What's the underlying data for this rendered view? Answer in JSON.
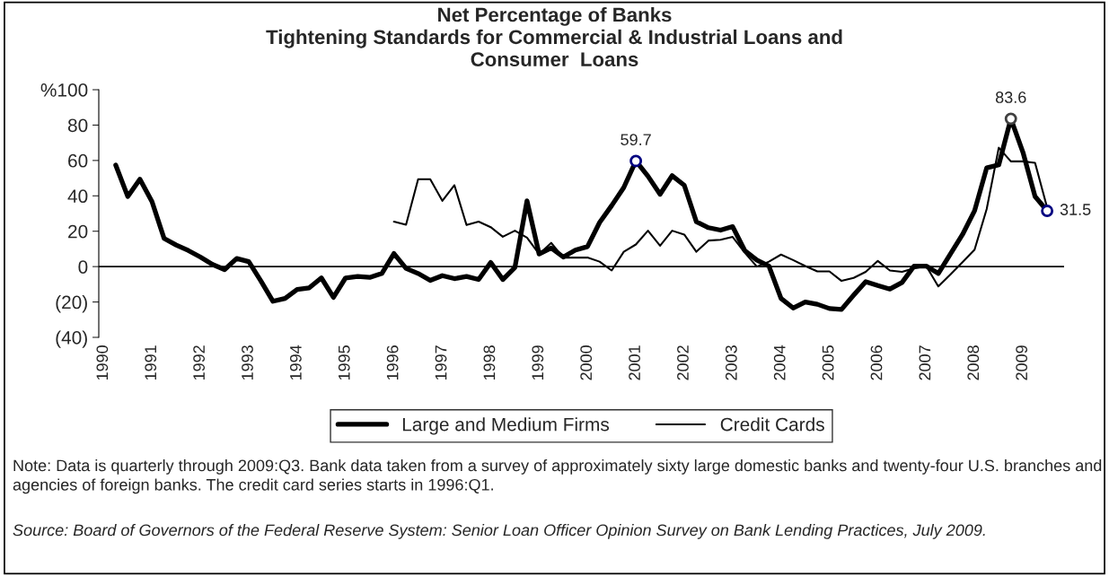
{
  "chart_data": {
    "type": "line",
    "title": "Net Percentage of Banks\nTightening Standards for Commercial & Industrial Loans and\nConsumer  Loans",
    "series": [
      {
        "name": "Large and Medium Firms",
        "color": "#000000",
        "x": [
          1990.25,
          1990.5,
          1990.75,
          1991,
          1991.25,
          1991.5,
          1991.75,
          1992,
          1992.25,
          1992.5,
          1992.75,
          1993,
          1993.25,
          1993.5,
          1993.75,
          1994,
          1994.25,
          1994.5,
          1994.75,
          1995,
          1995.25,
          1995.5,
          1995.75,
          1996,
          1996.25,
          1996.5,
          1996.75,
          1997,
          1997.25,
          1997.5,
          1997.75,
          1998,
          1998.25,
          1998.5,
          1998.75,
          1999,
          1999.25,
          1999.5,
          1999.75,
          2000,
          2000.25,
          2000.5,
          2000.75,
          2001,
          2001.25,
          2001.5,
          2001.75,
          2002,
          2002.25,
          2002.5,
          2002.75,
          2003,
          2003.25,
          2003.5,
          2003.75,
          2004,
          2004.25,
          2004.5,
          2004.75,
          2005,
          2005.25,
          2005.5,
          2005.75,
          2006,
          2006.25,
          2006.5,
          2006.75,
          2007,
          2007.25,
          2007.5,
          2007.75,
          2008,
          2008.25,
          2008.5,
          2008.75,
          2009,
          2009.25,
          2009.5
        ],
        "values": [
          57.4,
          39.6,
          49.4,
          36.7,
          15.9,
          12.2,
          9.1,
          5.4,
          1.2,
          -1.7,
          4.6,
          2.8,
          -8.1,
          -19.6,
          -18,
          -12.9,
          -12,
          -6.4,
          -17.4,
          -6.4,
          -5.6,
          -6.1,
          -3.9,
          7.4,
          -1,
          -3.9,
          -7.8,
          -5.1,
          -6.8,
          -5.6,
          -7.3,
          2.3,
          -7.3,
          -0.5,
          37.2,
          7.1,
          10.5,
          5.4,
          9.3,
          11.3,
          24.9,
          34.5,
          44.7,
          59.7,
          51.1,
          40.9,
          51.4,
          46,
          25.4,
          22,
          20.6,
          22.6,
          9.1,
          3.7,
          0.3,
          -18,
          -23.4,
          -20,
          -21.3,
          -23.7,
          -24.2,
          -16.2,
          -8.5,
          -10.7,
          -12.7,
          -9,
          0.3,
          0.3,
          -3.9,
          7.1,
          18.1,
          31.6,
          55.8,
          57.5,
          83.6,
          64.6,
          39.6,
          31.5
        ]
      },
      {
        "name": "Credit Cards",
        "color": "#000000",
        "x": [
          1996,
          1996.25,
          1996.5,
          1996.75,
          1997,
          1997.25,
          1997.5,
          1997.75,
          1998,
          1998.25,
          1998.5,
          1998.75,
          1999,
          1999.25,
          1999.5,
          1999.75,
          2000,
          2000.25,
          2000.5,
          2000.75,
          2001,
          2001.25,
          2001.5,
          2001.75,
          2002,
          2002.25,
          2002.5,
          2002.75,
          2003,
          2003.25,
          2003.5,
          2003.75,
          2004,
          2004.25,
          2004.5,
          2004.75,
          2005,
          2005.25,
          2005.5,
          2005.75,
          2006,
          2006.25,
          2006.5,
          2006.75,
          2007,
          2007.25,
          2007.5,
          2007.75,
          2008,
          2008.25,
          2008.5,
          2008.75,
          2009,
          2009.25,
          2009.5
        ],
        "values": [
          25.4,
          23.7,
          49.4,
          49.4,
          37.2,
          46,
          23.5,
          25.4,
          22.3,
          16.9,
          20.3,
          16.4,
          7.1,
          13.4,
          5.1,
          5.1,
          5.1,
          2.8,
          -2.2,
          8.4,
          12.5,
          20.3,
          11.8,
          20.3,
          18.1,
          8.4,
          14.7,
          15.2,
          16.8,
          7.9,
          0,
          2.8,
          6.8,
          3.7,
          0.3,
          -2.7,
          -2.7,
          -8.1,
          -6.4,
          -3,
          3.2,
          -2.2,
          -3,
          -1,
          0.3,
          -11.2,
          -4.5,
          2.5,
          9.6,
          32.5,
          67.2,
          59.5,
          59.5,
          58.7,
          33.3
        ]
      }
    ],
    "xlim": [
      1989.9,
      2009.85
    ],
    "xticks": [
      1990,
      1991,
      1992,
      1993,
      1994,
      1995,
      1996,
      1997,
      1998,
      1999,
      2000,
      2001,
      2002,
      2003,
      2004,
      2005,
      2006,
      2007,
      2008,
      2009
    ],
    "ylim": [
      -40,
      100
    ],
    "yticks": [
      {
        "value": -40,
        "label": "(40)"
      },
      {
        "value": -20,
        "label": "(20)"
      },
      0,
      20,
      40,
      60,
      80,
      {
        "value": 100,
        "label": "%100"
      }
    ],
    "ref_lines": [
      {
        "axis": "y",
        "value": 0,
        "color": "#000000"
      }
    ],
    "grid": false,
    "legend": "bottom",
    "annotations": [
      {
        "text": "59.7",
        "x": 2001,
        "y": 59.7
      },
      {
        "text": "83.6",
        "x": 2008.75,
        "y": 83.6
      },
      {
        "text": "31.5",
        "x": 2009.5,
        "y": 31.5
      },
      "Note: Data is quarterly through 2009:Q3. Bank data taken from a survey of approximately sixty large domestic banks and twenty-four U.S. branches and agencies of foreign banks. The credit card series starts in 1996:Q1.",
      "Source: Board of Governors of the Federal Reserve System: Senior Loan Officer Opinion Survey on Bank Lending Practices, July 2009."
    ]
  }
}
